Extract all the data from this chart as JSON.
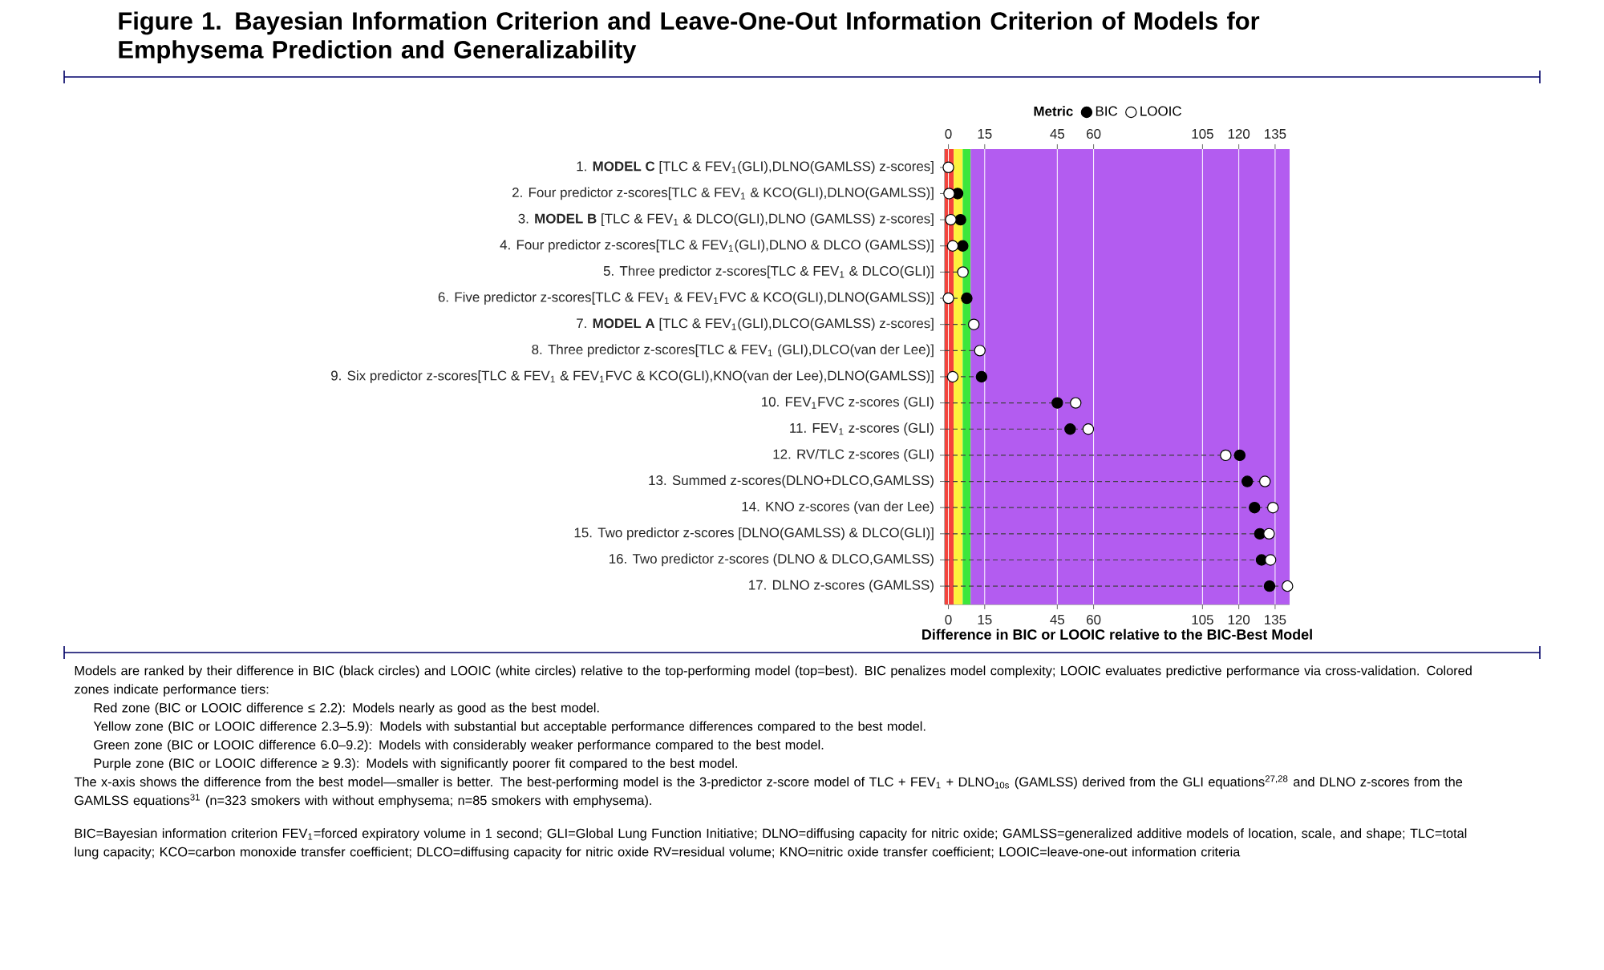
{
  "chart_data": {
    "type": "lollipop",
    "orientation": "horizontal",
    "title": "Figure 1. Bayesian Information Criterion and Leave-One-Out Information Criterion of Models for Emphysema Prediction and Generalizability",
    "xlabel": "Difference in BIC or LOOIC relative to the BIC-Best Model",
    "legend_title": "Metric",
    "categories": [
      "1. **MODEL C** [TLC & FEV$_{1}$(GLI),DLNO(GAMLSS) z-scores]",
      "2. Four predictor z-scores[TLC & FEV$_{1}$ & KCO(GLI),DLNO(GAMLSS)]",
      "3. **MODEL B** [TLC & FEV$_{1}$ & DLCO(GLI),DLNO (GAMLSS) z-scores]",
      "4. Four predictor z-scores[TLC & FEV$_{1}$(GLI),DLNO & DLCO (GAMLSS)]",
      "5. Three predictor z-scores[TLC & FEV$_{1}$ & DLCO(GLI)]",
      "6. Five predictor z-scores[TLC & FEV$_{1}$ & FEV$_{1}$FVC & KCO(GLI),DLNO(GAMLSS)]",
      "7. **MODEL A** [TLC & FEV$_{1}$(GLI),DLCO(GAMLSS) z-scores]",
      "8. Three predictor z-scores[TLC & FEV$_{1}$ (GLI),DLCO(van der Lee)]",
      "9. Six predictor z-scores[TLC & FEV$_{1}$ & FEV$_{1}$FVC & KCO(GLI),KNO(van der Lee),DLNO(GAMLSS)]",
      "10. FEV$_{1}$FVC z-scores (GLI)",
      "11. FEV$_{1}$ z-scores (GLI)",
      "12. RV/TLC z-scores (GLI)",
      "13. Summed z-scores(DLNO+DLCO,GAMLSS)",
      "14. KNO z-scores (van der Lee)",
      "15. Two predictor z-scores [DLNO(GAMLSS) & DLCO(GLI)]",
      "16. Two predictor z-scores (DLNO & DLCO,GAMLSS)",
      "17. DLNO z-scores (GAMLSS)"
    ],
    "series": [
      {
        "name": "BIC",
        "color": "#000000",
        "values": [
          null,
          3.8,
          5.0,
          5.9,
          null,
          7.6,
          null,
          null,
          13.7,
          45,
          50.3,
          120.4,
          123.5,
          126.5,
          128.7,
          129.4,
          132.7
        ]
      },
      {
        "name": "LOOIC",
        "color": "#ffffff",
        "values": [
          0,
          0.3,
          1.0,
          1.8,
          6.0,
          0,
          10.5,
          13.0,
          1.8,
          52.6,
          57.8,
          114.6,
          130.8,
          134.1,
          132.5,
          133.1,
          140.1
        ]
      }
    ],
    "line_style": "dashed",
    "grid": "x",
    "legend": "top",
    "xlim": [
      -1.5,
      141
    ],
    "xticks": [
      0,
      15,
      45,
      60,
      105,
      120,
      135
    ],
    "x2lim": [
      -1.5,
      141
    ],
    "x2ticks": [
      0,
      15,
      45,
      60,
      105,
      120,
      135
    ],
    "bands": [
      {
        "axis": "x",
        "from": -1.5,
        "to": 2.2,
        "color": "#f4433c"
      },
      {
        "axis": "x",
        "from": 2.2,
        "to": 5.9,
        "color": "#fdf23c"
      },
      {
        "axis": "x",
        "from": 5.9,
        "to": 9.2,
        "color": "#3ce63c"
      },
      {
        "axis": "x",
        "from": 9.2,
        "to": 141,
        "color": "#b35cf0"
      }
    ],
    "annotations": [
      "Models are ranked by their difference in BIC (black circles) and LOOIC (white circles) relative to the top-performing model (top=best). BIC penalizes model complexity; LOOIC evaluates predictive performance via cross-validation. Colored zones indicate performance tiers:",
      "Red zone (BIC or LOOIC difference ≤ 2.2): Models nearly as good as the best model.",
      "Yellow zone (BIC or LOOIC difference 2.3–5.9): Models with substantial but acceptable performance differences compared to the best model.",
      "Green zone (BIC or LOOIC difference 6.0–9.2): Models with considerably weaker performance compared to the best model.",
      "Purple zone (BIC or LOOIC difference ≥ 9.3): Models with significantly poorer fit compared to the best model.",
      "The x-axis shows the difference from the best model—smaller is better. The best-performing model is the 3-predictor z-score model of TLC + FEV$_{1}$ + DLNO$_{10s}$ (GAMLSS) derived from the GLI equations$^{27,28}$ and DLNO z-scores from the GAMLSS equations$^{31}$ (n=323 smokers with without emphysema; n=85 smokers with emphysema).",
      "BIC=Bayesian information criterion FEV$_{1}$=forced expiratory volume in 1 second; GLI=Global Lung Function Initiative; DLNO=diffusing capacity for nitric oxide; GAMLSS=generalized additive models of location, scale, and shape; TLC=total lung capacity; KCO=carbon monoxide transfer coefficient; DLCO=diffusing capacity for nitric oxide RV=residual volume; KNO=nitric oxide transfer coefficient; LOOIC=leave-one-out information criteria"
    ]
  }
}
